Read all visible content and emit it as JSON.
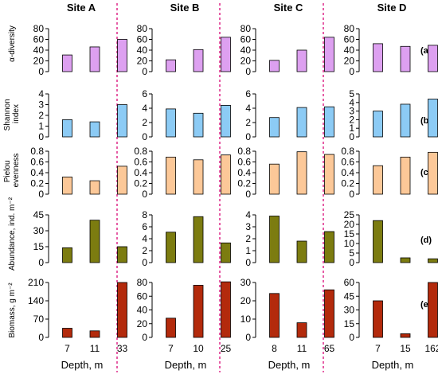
{
  "sites": [
    "Site A",
    "Site B",
    "Site C",
    "Site D"
  ],
  "panel_labels": [
    "(a)",
    "(b)",
    "(c)",
    "(d)",
    "(e)"
  ],
  "row_ylabels": [
    [
      "α-diversity"
    ],
    [
      "Shannon",
      "index"
    ],
    [
      "Pielou",
      "evenness"
    ],
    [
      "Abundance, ind. m⁻²"
    ],
    [
      "Biomass, g m⁻²"
    ]
  ],
  "xlabel": "Depth, m",
  "depths": [
    [
      "7",
      "11",
      "33"
    ],
    [
      "7",
      "10",
      "25"
    ],
    [
      "8",
      "11",
      "65"
    ],
    [
      "7",
      "15",
      "162"
    ]
  ],
  "colors": [
    "#dda0f0",
    "#8ccbf5",
    "#fcc898",
    "#7c7c10",
    "#b32a0c"
  ],
  "separator_color": "#e0358f",
  "chart_data": {
    "type": "bar",
    "grid": false,
    "layout": "grid 5 rows (metrics) x 4 columns (sites)",
    "x": "Depth, m",
    "rows": [
      {
        "metric": "α-diversity",
        "panel": "(a)",
        "panels": [
          {
            "site": "Site A",
            "categories": [
              "7",
              "11",
              "33"
            ],
            "values": [
              31,
              46,
              60
            ],
            "ylim": [
              0,
              80
            ],
            "yticks": [
              "0",
              "20",
              "40",
              "60",
              "80"
            ]
          },
          {
            "site": "Site B",
            "categories": [
              "7",
              "10",
              "25"
            ],
            "values": [
              22,
              41,
              64
            ],
            "ylim": [
              0,
              80
            ],
            "yticks": [
              "0",
              "20",
              "40",
              "60",
              "80"
            ]
          },
          {
            "site": "Site C",
            "categories": [
              "8",
              "11",
              "65"
            ],
            "values": [
              21,
              40,
              64
            ],
            "ylim": [
              0,
              80
            ],
            "yticks": [
              "0",
              "20",
              "40",
              "60",
              "80"
            ]
          },
          {
            "site": "Site D",
            "categories": [
              "7",
              "15",
              "162"
            ],
            "values": [
              52,
              47,
              49
            ],
            "ylim": [
              0,
              80
            ],
            "yticks": [
              "0",
              "20",
              "40",
              "60",
              "80"
            ]
          }
        ]
      },
      {
        "metric": "Shannon index",
        "panel": "(b)",
        "panels": [
          {
            "site": "Site A",
            "categories": [
              "7",
              "11",
              "33"
            ],
            "values": [
              1.6,
              1.4,
              3.0
            ],
            "ylim": [
              0,
              4
            ],
            "yticks": [
              "0",
              "1",
              "2",
              "3",
              "4"
            ]
          },
          {
            "site": "Site B",
            "categories": [
              "7",
              "10",
              "25"
            ],
            "values": [
              3.9,
              3.3,
              4.4
            ],
            "ylim": [
              0,
              6
            ],
            "yticks": [
              "0",
              "2",
              "4",
              "6"
            ]
          },
          {
            "site": "Site C",
            "categories": [
              "8",
              "11",
              "65"
            ],
            "values": [
              2.7,
              4.1,
              4.2
            ],
            "ylim": [
              0,
              6
            ],
            "yticks": [
              "0",
              "2",
              "4",
              "6"
            ]
          },
          {
            "site": "Site D",
            "categories": [
              "7",
              "15",
              "162"
            ],
            "values": [
              3.0,
              3.8,
              4.4
            ],
            "ylim": [
              0,
              5
            ],
            "yticks": [
              "0",
              "1",
              "2",
              "3",
              "4",
              "5"
            ]
          }
        ]
      },
      {
        "metric": "Pielou evenness",
        "panel": "(c)",
        "panels": [
          {
            "site": "Site A",
            "categories": [
              "7",
              "11",
              "33"
            ],
            "values": [
              0.32,
              0.25,
              0.52
            ],
            "ylim": [
              0,
              0.8
            ],
            "yticks": [
              "0",
              "0.2",
              "0.4",
              "0.6",
              "0.8"
            ]
          },
          {
            "site": "Site B",
            "categories": [
              "7",
              "10",
              "25"
            ],
            "values": [
              0.69,
              0.64,
              0.73
            ],
            "ylim": [
              0,
              0.8
            ],
            "yticks": [
              "0",
              "0.2",
              "0.4",
              "0.6",
              "0.8"
            ]
          },
          {
            "site": "Site C",
            "categories": [
              "8",
              "11",
              "65"
            ],
            "values": [
              0.56,
              0.79,
              0.74
            ],
            "ylim": [
              0,
              0.8
            ],
            "yticks": [
              "0",
              "0.2",
              "0.4",
              "0.6",
              "0.8"
            ]
          },
          {
            "site": "Site D",
            "categories": [
              "7",
              "15",
              "162"
            ],
            "values": [
              0.53,
              0.69,
              0.78
            ],
            "ylim": [
              0,
              0.8
            ],
            "yticks": [
              "0",
              "0.2",
              "0.4",
              "0.6",
              "0.8"
            ]
          }
        ]
      },
      {
        "metric": "Abundance, ind. m⁻²",
        "panel": "(d)",
        "panels": [
          {
            "site": "Site A",
            "categories": [
              "7",
              "11",
              "33"
            ],
            "values": [
              14,
              40,
              15
            ],
            "ylim": [
              0,
              45
            ],
            "yticks": [
              "0",
              "15",
              "30",
              "45"
            ]
          },
          {
            "site": "Site B",
            "categories": [
              "7",
              "10",
              "25"
            ],
            "values": [
              5.1,
              7.7,
              3.3
            ],
            "ylim": [
              0,
              8
            ],
            "yticks": [
              "0",
              "2",
              "4",
              "6",
              "8"
            ]
          },
          {
            "site": "Site C",
            "categories": [
              "8",
              "11",
              "65"
            ],
            "values": [
              3.9,
              1.8,
              2.6
            ],
            "ylim": [
              0,
              4
            ],
            "yticks": [
              "0",
              "1",
              "2",
              "3",
              "4"
            ]
          },
          {
            "site": "Site D",
            "categories": [
              "7",
              "15",
              "162"
            ],
            "values": [
              22,
              2.5,
              2.0
            ],
            "ylim": [
              0,
              25
            ],
            "yticks": [
              "0",
              "5",
              "10",
              "15",
              "20",
              "25"
            ]
          }
        ]
      },
      {
        "metric": "Biomass, g m⁻²",
        "panel": "(e)",
        "panels": [
          {
            "site": "Site A",
            "categories": [
              "7",
              "11",
              "33"
            ],
            "values": [
              35,
              25,
              210
            ],
            "ylim": [
              0,
              210
            ],
            "yticks": [
              "0",
              "70",
              "140",
              "210"
            ]
          },
          {
            "site": "Site B",
            "categories": [
              "7",
              "10",
              "25"
            ],
            "values": [
              28,
              76,
              81
            ],
            "ylim": [
              0,
              80
            ],
            "yticks": [
              "0",
              "20",
              "40",
              "60",
              "80"
            ]
          },
          {
            "site": "Site C",
            "categories": [
              "8",
              "11",
              "65"
            ],
            "values": [
              24,
              8,
              26
            ],
            "ylim": [
              0,
              30
            ],
            "yticks": [
              "0",
              "10",
              "20",
              "30"
            ]
          },
          {
            "site": "Site D",
            "categories": [
              "7",
              "15",
              "162"
            ],
            "values": [
              40,
              4,
              60
            ],
            "ylim": [
              0,
              60
            ],
            "yticks": [
              "0",
              "15",
              "30",
              "45",
              "60"
            ]
          }
        ]
      }
    ]
  }
}
